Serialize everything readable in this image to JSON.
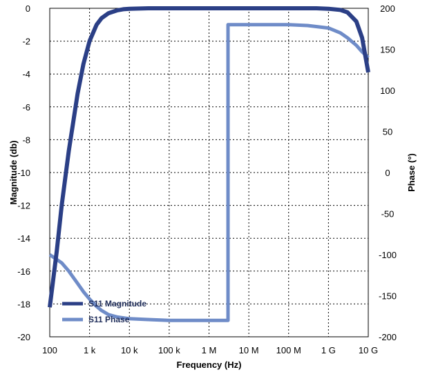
{
  "chart_data": {
    "type": "line",
    "xlabel": "Frequency (Hz)",
    "ylabel_left": "Magnitude (db)",
    "ylabel_right": "Phase (°)",
    "x_scale": "log",
    "xlim": [
      100,
      10000000000
    ],
    "ylim_left": [
      -20,
      0
    ],
    "ylim_right": [
      -200,
      200
    ],
    "x_ticks": [
      {
        "value": 100,
        "label": "100"
      },
      {
        "value": 1000,
        "label": "1 k"
      },
      {
        "value": 10000,
        "label": "10 k"
      },
      {
        "value": 100000,
        "label": "100 k"
      },
      {
        "value": 1000000,
        "label": "1 M"
      },
      {
        "value": 10000000,
        "label": "10 M"
      },
      {
        "value": 100000000,
        "label": "100 M"
      },
      {
        "value": 1000000000,
        "label": "1 G"
      },
      {
        "value": 10000000000,
        "label": "10 G"
      }
    ],
    "y_ticks_left": [
      0,
      -2,
      -4,
      -6,
      -8,
      -10,
      -12,
      -14,
      -16,
      -18,
      -20
    ],
    "y_ticks_right": [
      200,
      150,
      100,
      50,
      0,
      -50,
      -100,
      -150,
      -200
    ],
    "grid": true,
    "grid_style": "dotted",
    "legend_position": "bottom-left",
    "series": [
      {
        "name": "S11 Magnitude",
        "axis": "left",
        "color": "#2b3f86",
        "x": [
          100,
          150,
          200,
          300,
          500,
          700,
          1000,
          1500,
          2000,
          3000,
          5000,
          7000,
          10000,
          30000,
          100000,
          1000000,
          10000000,
          100000000,
          500000000,
          1000000000,
          2000000000,
          3000000000,
          5000000000,
          7000000000,
          10000000000
        ],
        "y": [
          -18.2,
          -14.8,
          -12.0,
          -8.7,
          -5.2,
          -3.4,
          -2.0,
          -1.0,
          -0.6,
          -0.3,
          -0.12,
          -0.06,
          -0.03,
          0,
          0,
          0,
          0,
          0,
          0,
          -0.03,
          -0.1,
          -0.25,
          -0.8,
          -1.8,
          -3.9
        ]
      },
      {
        "name": "S11 Phase",
        "axis": "right",
        "color": "#6f8cc8",
        "x": [
          100,
          200,
          300,
          500,
          700,
          1000,
          1500,
          2000,
          3000,
          5000,
          10000,
          30000,
          100000,
          1000000,
          3000000,
          3000000,
          10000000,
          100000000,
          300000000,
          1000000000,
          2000000000,
          3000000000,
          5000000000,
          7000000000,
          10000000000
        ],
        "y": [
          -100,
          -110,
          -120,
          -135,
          -145,
          -154,
          -163,
          -168,
          -173,
          -176,
          -178,
          -179,
          -180,
          -180,
          -180,
          180,
          180,
          180,
          179,
          176,
          170,
          164,
          155,
          147,
          140
        ]
      }
    ]
  }
}
